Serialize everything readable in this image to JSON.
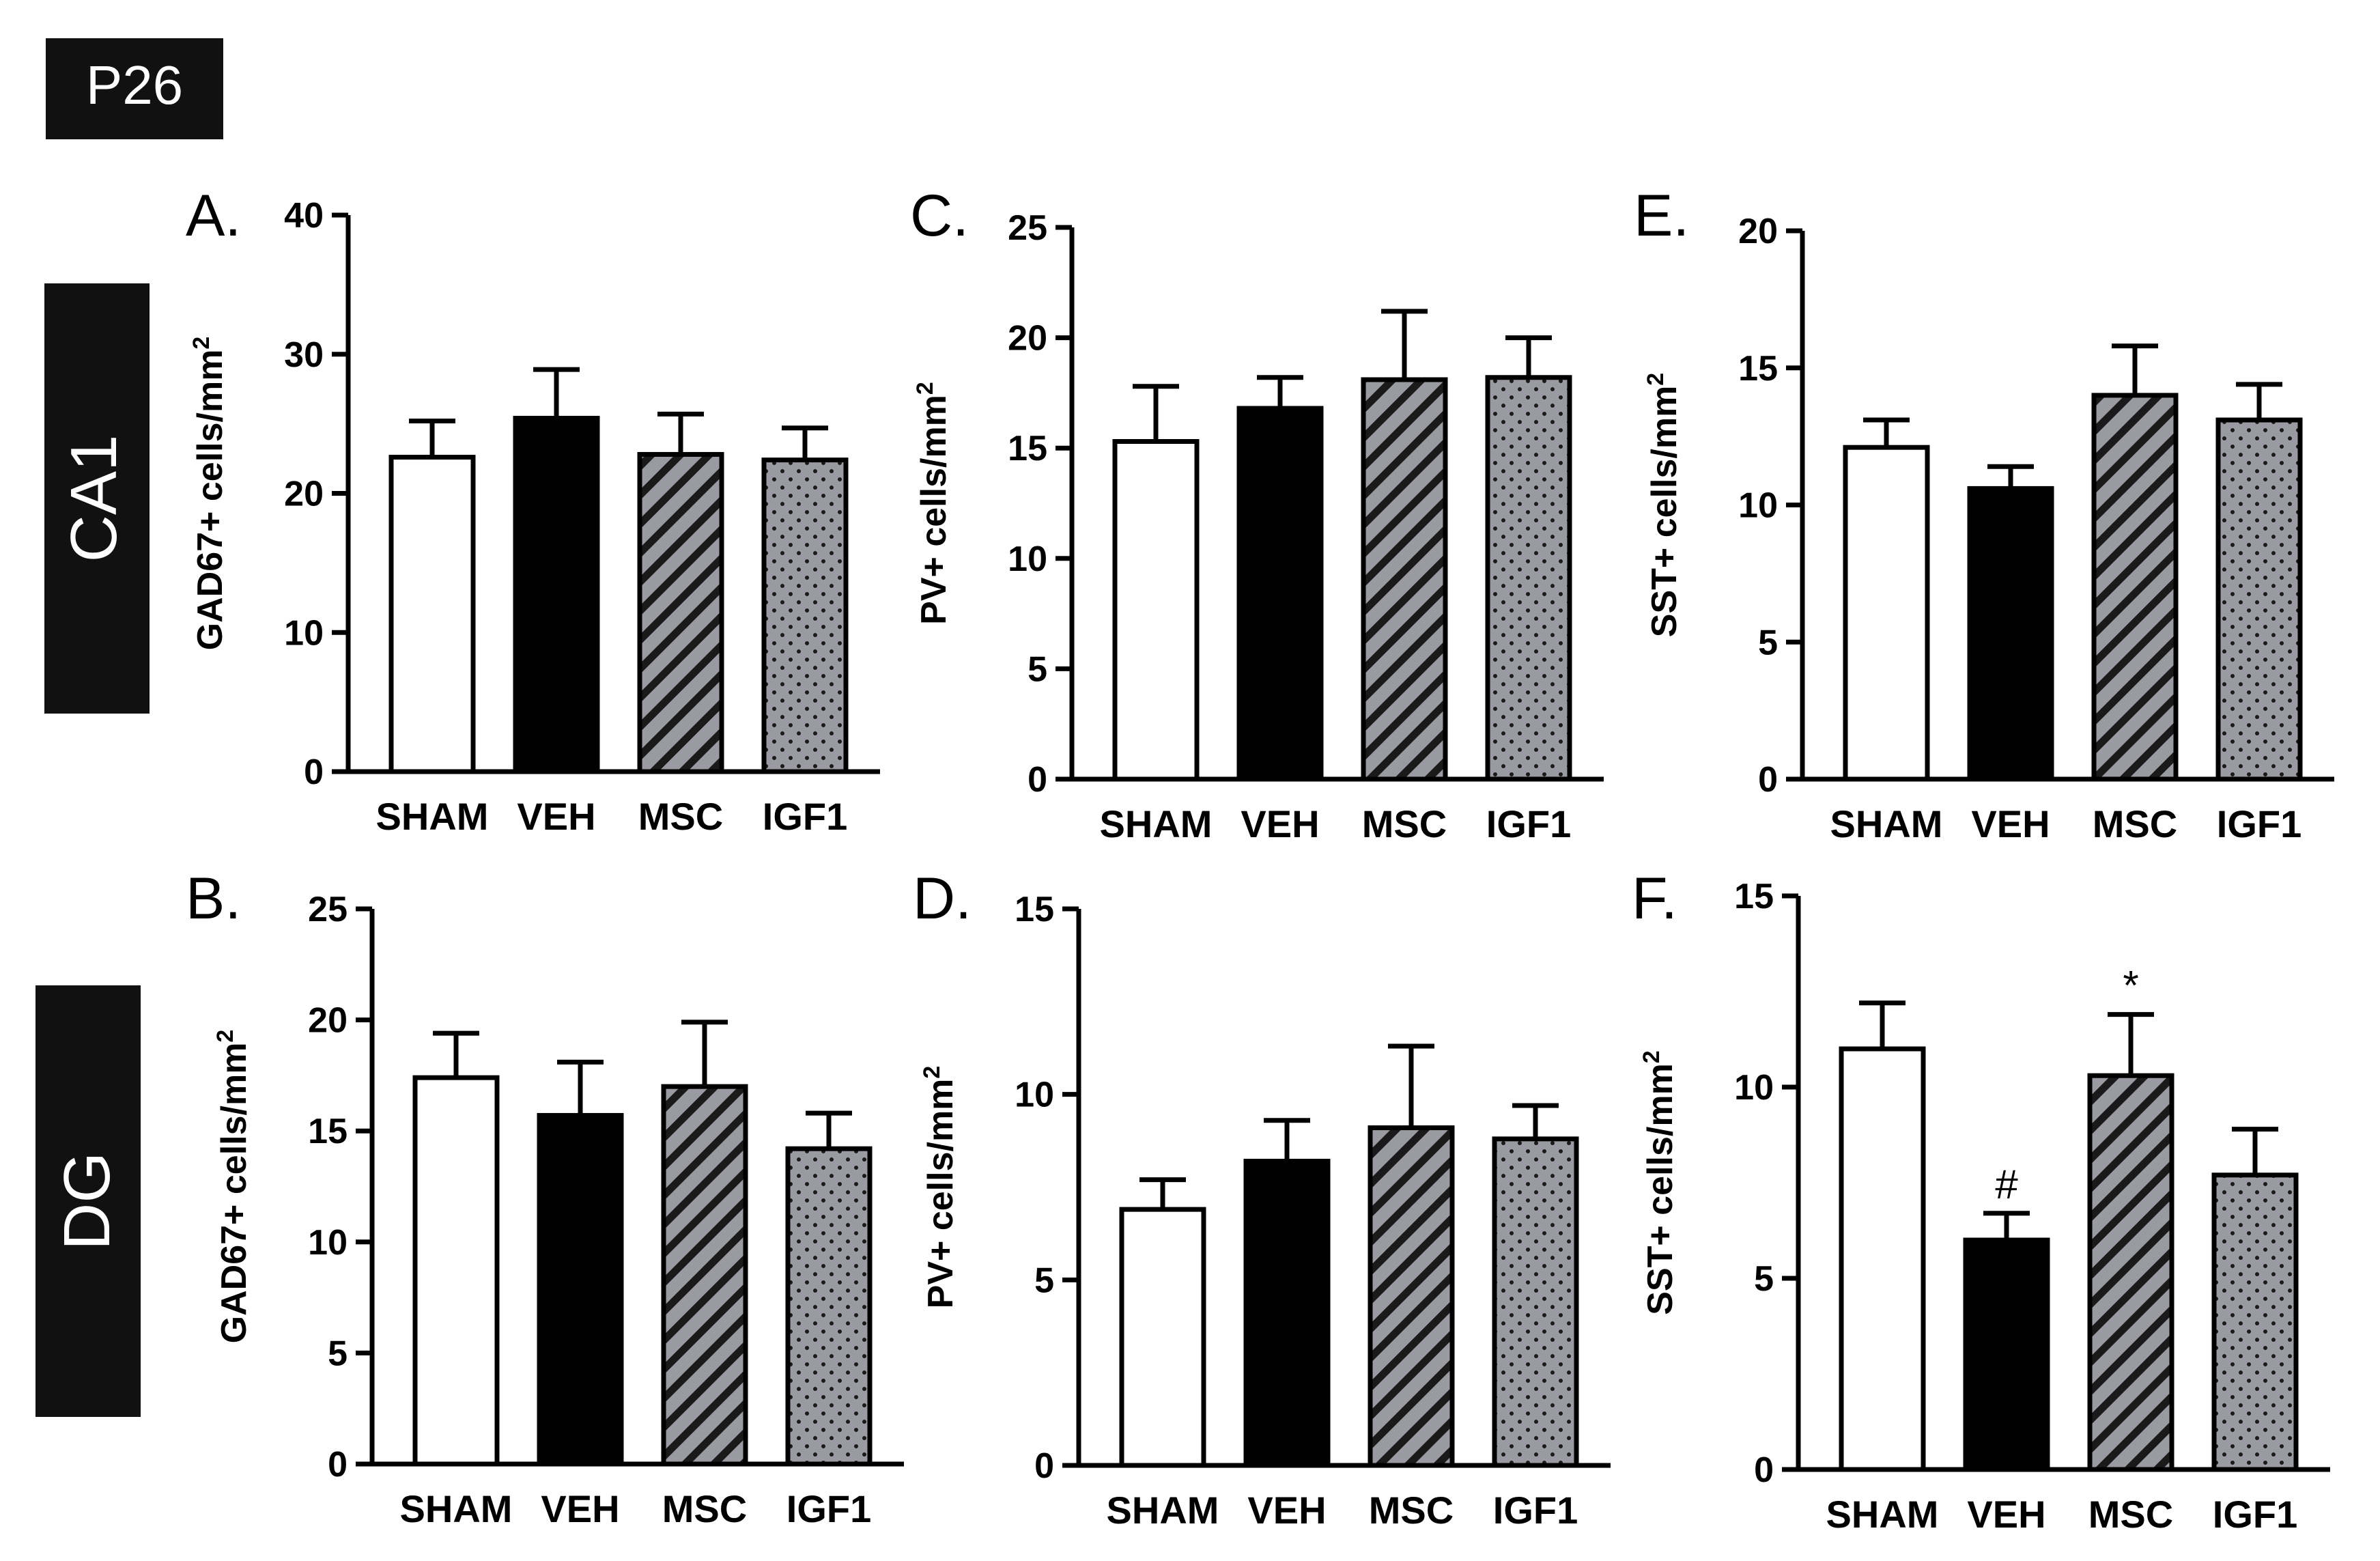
{
  "figure_label": "P26",
  "row_labels": [
    "CA1",
    "DG"
  ],
  "colors": {
    "frame": "#000000",
    "pattern_fill": "#9a9aa2",
    "background": "#ffffff"
  },
  "chart_data": [
    {
      "id": "A",
      "panel": "A.",
      "type": "bar",
      "ylabel": "GAD67+ cells/mm",
      "ylabel_sup": "2",
      "categories": [
        "SHAM",
        "VEH",
        "MSC",
        "IGF1"
      ],
      "styles": [
        "white",
        "black",
        "hatch",
        "dots"
      ],
      "values": [
        22.6,
        25.4,
        22.8,
        22.4
      ],
      "errors": [
        2.6,
        3.5,
        2.9,
        2.3
      ],
      "ylim": [
        0,
        40
      ],
      "yticks": [
        0,
        10,
        20,
        30,
        40
      ],
      "annotations": [
        "",
        "",
        "",
        ""
      ]
    },
    {
      "id": "C",
      "panel": "C.",
      "type": "bar",
      "ylabel": "PV+ cells/mm",
      "ylabel_sup": "2",
      "categories": [
        "SHAM",
        "VEH",
        "MSC",
        "IGF1"
      ],
      "styles": [
        "white",
        "black",
        "hatch",
        "dots"
      ],
      "values": [
        15.3,
        16.8,
        18.1,
        18.2
      ],
      "errors": [
        2.5,
        1.4,
        3.1,
        1.8
      ],
      "ylim": [
        0,
        25
      ],
      "yticks": [
        0,
        5,
        10,
        15,
        20,
        25
      ],
      "annotations": [
        "",
        "",
        "",
        ""
      ]
    },
    {
      "id": "E",
      "panel": "E.",
      "type": "bar",
      "ylabel": "SST+ cells/mm",
      "ylabel_sup": "2",
      "categories": [
        "SHAM",
        "VEH",
        "MSC",
        "IGF1"
      ],
      "styles": [
        "white",
        "black",
        "hatch",
        "dots"
      ],
      "values": [
        12.1,
        10.6,
        14.0,
        13.1
      ],
      "errors": [
        1.0,
        0.8,
        1.8,
        1.3
      ],
      "ylim": [
        0,
        20
      ],
      "yticks": [
        0,
        5,
        10,
        15,
        20
      ],
      "annotations": [
        "",
        "",
        "",
        ""
      ]
    },
    {
      "id": "B",
      "panel": "B.",
      "type": "bar",
      "ylabel": "GAD67+ cells/mm",
      "ylabel_sup": "2",
      "categories": [
        "SHAM",
        "VEH",
        "MSC",
        "IGF1"
      ],
      "styles": [
        "white",
        "black",
        "hatch",
        "dots"
      ],
      "values": [
        17.4,
        15.7,
        17.0,
        14.2
      ],
      "errors": [
        2.0,
        2.4,
        2.9,
        1.6
      ],
      "ylim": [
        0,
        25
      ],
      "yticks": [
        0,
        5,
        10,
        15,
        20,
        25
      ],
      "annotations": [
        "",
        "",
        "",
        ""
      ]
    },
    {
      "id": "D",
      "panel": "D.",
      "type": "bar",
      "ylabel": "PV+ cells/mm",
      "ylabel_sup": "2",
      "categories": [
        "SHAM",
        "VEH",
        "MSC",
        "IGF1"
      ],
      "styles": [
        "white",
        "black",
        "hatch",
        "dots"
      ],
      "values": [
        6.9,
        8.2,
        9.1,
        8.8
      ],
      "errors": [
        0.8,
        1.1,
        2.2,
        0.9
      ],
      "ylim": [
        0,
        15
      ],
      "yticks": [
        0,
        5,
        10,
        15
      ],
      "annotations": [
        "",
        "",
        "",
        ""
      ]
    },
    {
      "id": "F",
      "panel": "F.",
      "type": "bar",
      "ylabel": "SST+ cells/mm",
      "ylabel_sup": "2",
      "categories": [
        "SHAM",
        "VEH",
        "MSC",
        "IGF1"
      ],
      "styles": [
        "white",
        "black",
        "hatch",
        "dots"
      ],
      "values": [
        11.0,
        6.0,
        10.3,
        7.7
      ],
      "errors": [
        1.2,
        0.7,
        1.6,
        1.2
      ],
      "ylim": [
        0,
        15
      ],
      "yticks": [
        0,
        5,
        10,
        15
      ],
      "annotations": [
        "",
        "#",
        "*",
        ""
      ]
    }
  ]
}
